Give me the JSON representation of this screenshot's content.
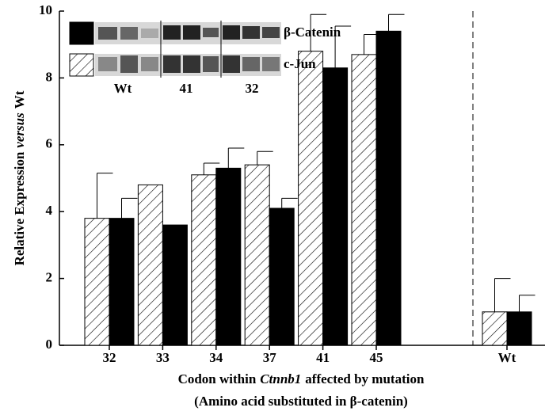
{
  "chart_data": {
    "type": "bar",
    "y_label": [
      "Relative Expression",
      "versus",
      "Wt"
    ],
    "x_label": [
      "Codon within",
      "Ctnnb1",
      "affected by mutation"
    ],
    "x_label_line2": "(Amino acid substituted in β-catenin)",
    "categories": [
      "32",
      "33",
      "34",
      "37",
      "41",
      "45",
      "Wt"
    ],
    "series": [
      {
        "name": "c-Jun",
        "color": "#ffffff",
        "pattern": "hatch",
        "values": [
          3.8,
          4.8,
          5.1,
          5.4,
          8.8,
          8.7,
          1.0
        ],
        "errors": [
          1.35,
          null,
          0.35,
          0.4,
          1.1,
          0.6,
          1.0
        ]
      },
      {
        "name": "β-Catenin",
        "color": "#000000",
        "pattern": "solid",
        "values": [
          3.8,
          3.6,
          5.3,
          4.1,
          8.3,
          9.4,
          1.0
        ],
        "errors": [
          0.6,
          null,
          0.6,
          0.3,
          1.25,
          0.5,
          0.5
        ]
      }
    ],
    "blot_labels": [
      "Wt",
      "41",
      "32"
    ],
    "ylim": [
      0,
      10
    ],
    "yticks": [
      0,
      2,
      4,
      6,
      8,
      10
    ]
  }
}
